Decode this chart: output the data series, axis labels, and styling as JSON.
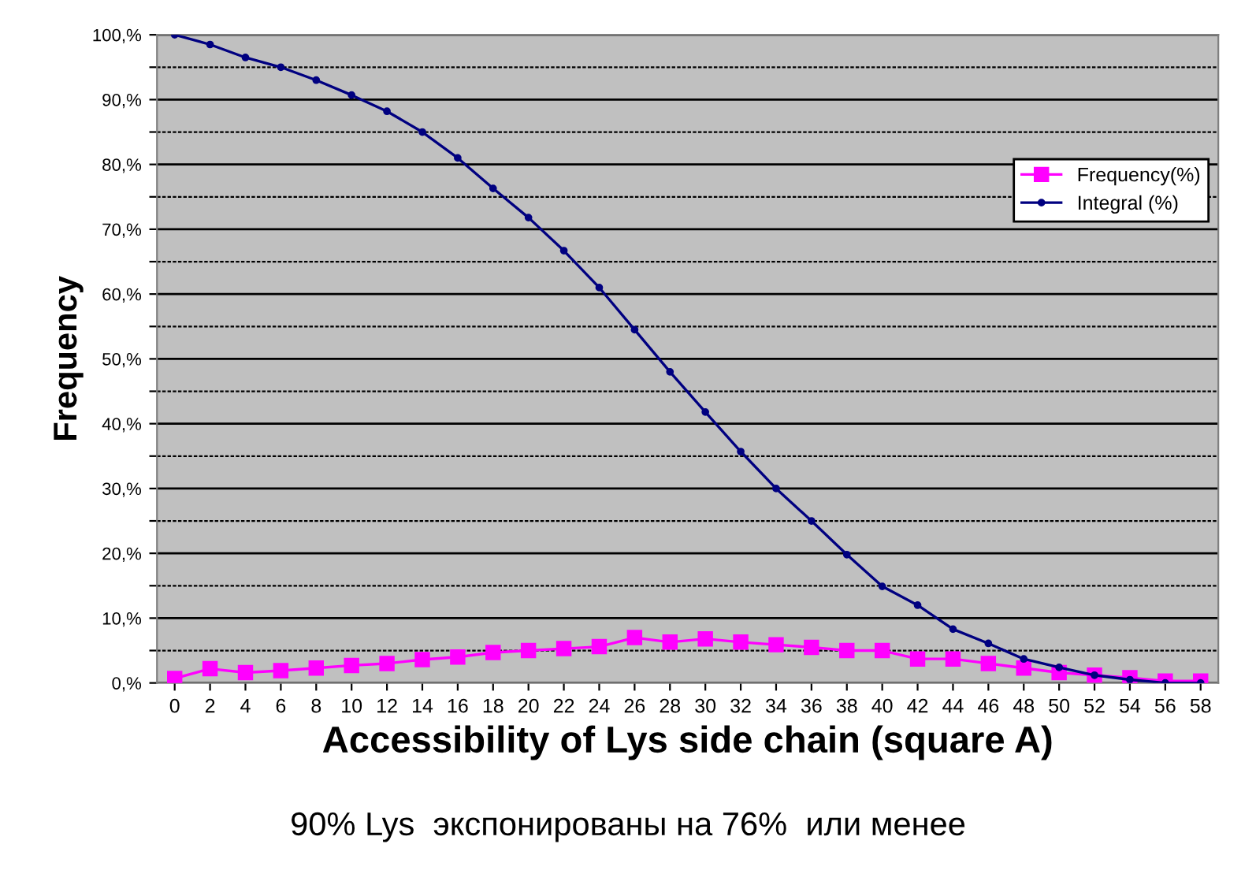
{
  "chart_data": {
    "type": "line",
    "xlabel": "Accessibility of Lys side chain (square A)",
    "ylabel": "Frequency",
    "categories": [
      "0",
      "2",
      "4",
      "6",
      "8",
      "10",
      "12",
      "14",
      "16",
      "18",
      "20",
      "22",
      "24",
      "26",
      "28",
      "30",
      "32",
      "34",
      "36",
      "38",
      "40",
      "42",
      "44",
      "46",
      "48",
      "50",
      "52",
      "54",
      "56",
      "58"
    ],
    "series": [
      {
        "name": "Frequency(%)",
        "color": "#ff00ff",
        "marker": "square",
        "values": [
          0.7,
          2.2,
          1.6,
          1.9,
          2.3,
          2.7,
          3.0,
          3.6,
          4.0,
          4.7,
          5.0,
          5.3,
          5.6,
          7.0,
          6.3,
          6.8,
          6.3,
          5.9,
          5.5,
          5.0,
          5.0,
          3.7,
          3.7,
          3.0,
          2.3,
          1.6,
          1.2,
          0.8,
          0.3,
          0.3
        ]
      },
      {
        "name": "Integral (%)",
        "color": "#000080",
        "marker": "circle",
        "values": [
          100,
          98.5,
          96.5,
          95,
          93,
          90.7,
          88.2,
          85,
          81,
          76.3,
          71.8,
          66.7,
          61,
          54.5,
          48,
          41.8,
          35.7,
          30,
          25,
          19.8,
          14.9,
          12,
          8.3,
          6.1,
          3.7,
          2.4,
          1.2,
          0.5,
          0,
          0
        ]
      }
    ],
    "ylim": [
      0,
      100
    ],
    "yticks": [
      {
        "value": 0,
        "label": "0,%"
      },
      {
        "value": 5,
        "label": null
      },
      {
        "value": 10,
        "label": "10,%"
      },
      {
        "value": 15,
        "label": null
      },
      {
        "value": 20,
        "label": "20,%"
      },
      {
        "value": 25,
        "label": null
      },
      {
        "value": 30,
        "label": "30,%"
      },
      {
        "value": 35,
        "label": null
      },
      {
        "value": 40,
        "label": "40,%"
      },
      {
        "value": 45,
        "label": null
      },
      {
        "value": 50,
        "label": "50,%"
      },
      {
        "value": 55,
        "label": null
      },
      {
        "value": 60,
        "label": "60,%"
      },
      {
        "value": 65,
        "label": null
      },
      {
        "value": 70,
        "label": "70,%"
      },
      {
        "value": 75,
        "label": null
      },
      {
        "value": 80,
        "label": "80,%"
      },
      {
        "value": 85,
        "label": null
      },
      {
        "value": 90,
        "label": "90,%"
      },
      {
        "value": 95,
        "label": null
      },
      {
        "value": 100,
        "label": "100,%"
      }
    ],
    "grid": "y",
    "legend": "right",
    "line_style": "solid",
    "annotations": [
      "90% Lys  экспонированы на 76%  или менее"
    ]
  }
}
